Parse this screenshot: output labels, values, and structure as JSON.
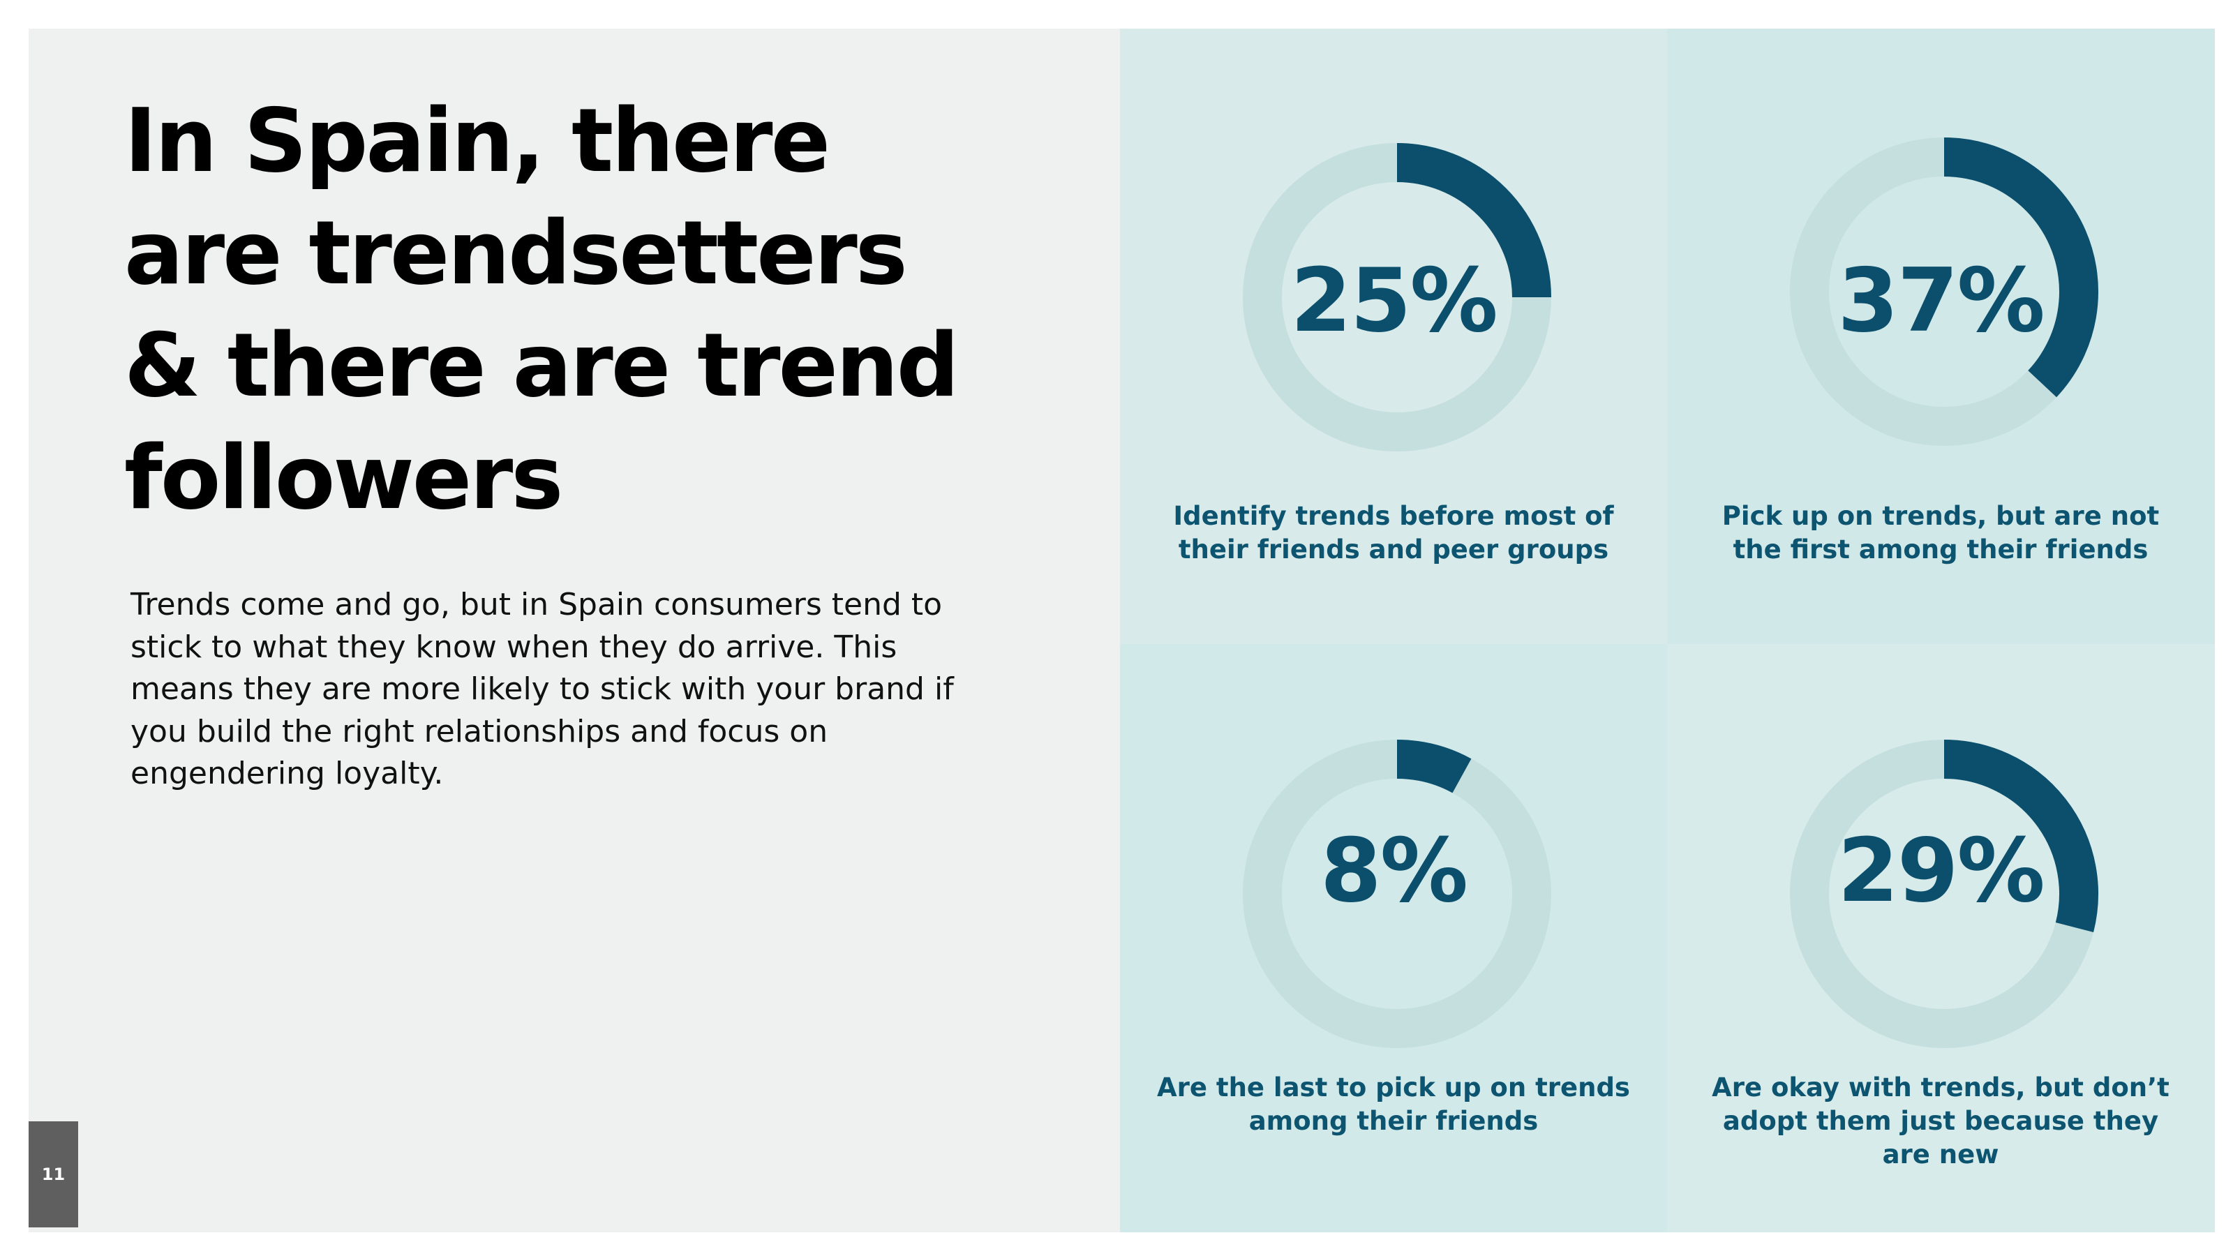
{
  "headline": {
    "lines": [
      "In Spain, there",
      "are trendsetters",
      "& there are trend",
      "followers"
    ]
  },
  "body": {
    "lines": [
      "Trends come and go, but in Spain consumers tend to",
      "stick to what they know when they do arrive. This",
      "means they are more likely to stick with your brand if",
      "you build the right relationships and focus on",
      "engendering loyalty."
    ]
  },
  "page_number": "11",
  "colors": {
    "accent": "#0b4f6c",
    "track": "#c5dfdf",
    "headline": "#000000"
  },
  "chart_data": [
    {
      "type": "pie",
      "values": [
        25,
        75
      ],
      "value_label": "25%",
      "caption_lines": [
        "Identify trends before most of",
        "their friends and peer groups"
      ]
    },
    {
      "type": "pie",
      "values": [
        37,
        63
      ],
      "value_label": "37%",
      "caption_lines": [
        "Pick up on trends, but are not",
        "the first among their friends"
      ]
    },
    {
      "type": "pie",
      "values": [
        8,
        92
      ],
      "value_label": "8%",
      "caption_lines": [
        "Are the last to pick up on trends",
        "among their friends"
      ]
    },
    {
      "type": "pie",
      "values": [
        29,
        71
      ],
      "value_label": "29%",
      "caption_lines": [
        "Are okay with trends, but don’t",
        "adopt them just because they",
        "are new"
      ]
    }
  ]
}
